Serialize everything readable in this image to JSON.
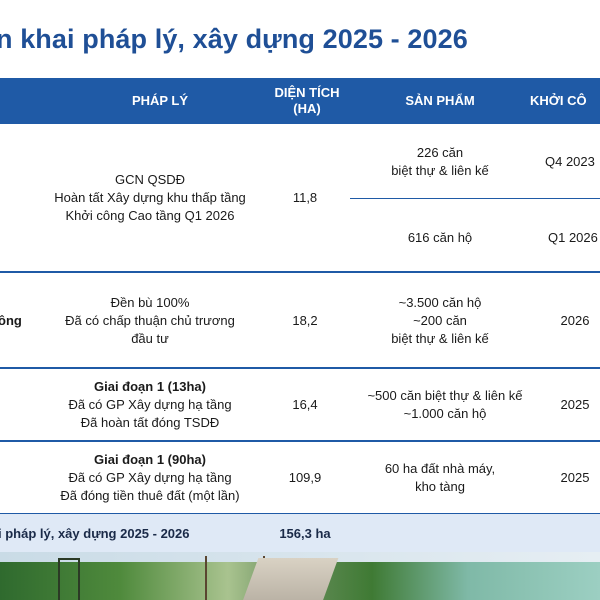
{
  "title": "n khai pháp lý, xây dựng 2025 - 2026",
  "header": {
    "phap_ly": "PHÁP LÝ",
    "dien_tich_line1": "DIỆN TÍCH",
    "dien_tich_line2": "(HA)",
    "san_pham": "SẢN PHẨM",
    "khoi_cong": "KHỞI CÔ"
  },
  "rows": [
    {
      "name": "",
      "phap_ly": [
        "GCN QSDĐ",
        "Hoàn tất Xây dựng khu thấp tầng",
        "Khởi công Cao tầng Q1 2026"
      ],
      "dien_tich": "11,8",
      "sub": [
        {
          "san_pham": [
            "226 căn",
            "biệt thự & liên kế"
          ],
          "khoi_cong": "Q4 2023"
        },
        {
          "san_pham": [
            "616 căn hộ"
          ],
          "khoi_cong": "Q1 2026"
        }
      ]
    },
    {
      "name": "ông",
      "phap_ly": [
        "Đền bù 100%",
        "Đã có chấp thuận chủ trương",
        "đầu tư"
      ],
      "dien_tich": "18,2",
      "san_pham": [
        "~3.500 căn hộ",
        "~200 căn",
        "biệt thự & liên kế"
      ],
      "khoi_cong": "2026"
    },
    {
      "name": "",
      "phap_ly_bold": "Giai đoạn 1 (13ha)",
      "phap_ly": [
        "Đã có GP Xây dựng hạ tầng",
        "Đã hoàn tất đóng TSDĐ"
      ],
      "dien_tich": "16,4",
      "san_pham": [
        "~500 căn biệt thự & liên kế",
        "~1.000 căn hộ"
      ],
      "khoi_cong": "2025"
    },
    {
      "name": "",
      "phap_ly_bold": "Giai đoạn 1 (90ha)",
      "phap_ly": [
        "Đã có GP Xây dựng hạ tầng",
        "Đã đóng tiền thuê đất (một lần)"
      ],
      "dien_tich": "109,9",
      "san_pham": [
        "60 ha đất nhà máy,",
        "kho tàng"
      ],
      "khoi_cong": "2025"
    }
  ],
  "total": {
    "label": "i pháp lý, xây dựng 2025 - 2026",
    "value": "156,3 ha"
  }
}
